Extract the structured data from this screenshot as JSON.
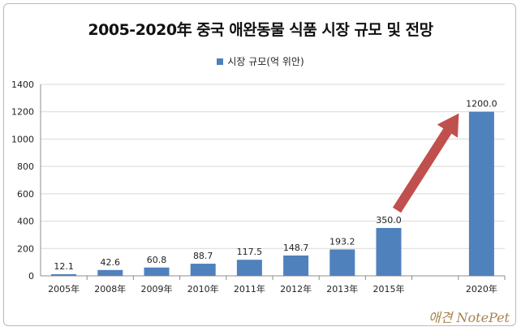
{
  "chart_data": {
    "type": "bar",
    "title": "2005-2020年 중국 애완동물 식품 시장 규모 및 전망",
    "categories": [
      "2005年",
      "2008年",
      "2009年",
      "2010年",
      "2011年",
      "2012年",
      "2013年",
      "2015年",
      "",
      "2020年"
    ],
    "series": [
      {
        "name": "시장 규모(억 위안)",
        "values": [
          12.1,
          42.6,
          60.8,
          88.7,
          117.5,
          148.7,
          193.2,
          350.0,
          null,
          1200.0
        ],
        "labels": [
          "12.1",
          "42.6",
          "60.8",
          "88.7",
          "117.5",
          "148.7",
          "193.2",
          "350.0",
          "",
          "1200.0"
        ]
      }
    ],
    "ylim": [
      0,
      1400
    ],
    "yticks": [
      0,
      200,
      400,
      600,
      800,
      1000,
      1200,
      1400
    ],
    "grid": true,
    "legend_position": "top",
    "annotation": "arrow-up-right",
    "colors": {
      "bar": "#4f81bd",
      "arrow": "#c0504d",
      "grid": "#d9d9d9"
    }
  },
  "watermark": "애견 NotePet"
}
